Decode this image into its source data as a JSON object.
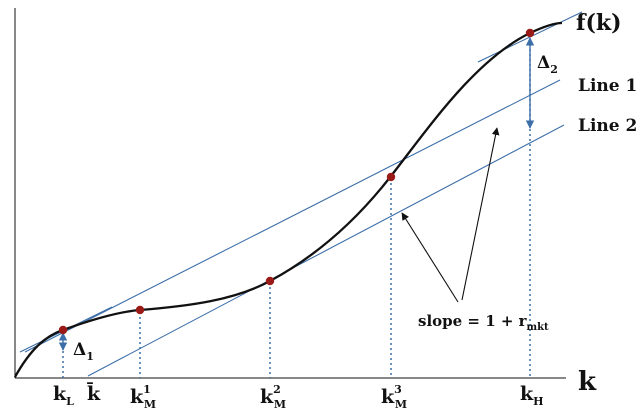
{
  "colors": {
    "curve": "#111111",
    "line": "#3c6ea8",
    "point": "#9a1a18",
    "axis": "#111111",
    "guide": "#3c6ea8"
  },
  "labels": {
    "f_of_k": "f(k)",
    "k_axis": "k",
    "line1": "Line 1",
    "line2": "Line 2",
    "delta1": "Δ",
    "delta1_sub": "1",
    "delta2": "Δ",
    "delta2_sub": "2",
    "slope": "slope = 1 + r",
    "slope_sub": "mkt"
  },
  "ticks": {
    "kL": {
      "main": "k",
      "sub": "L",
      "sup": ""
    },
    "kbar": {
      "main": "k̄",
      "sub": "",
      "sup": ""
    },
    "kM1": {
      "main": "k",
      "sub": "M",
      "sup": "1"
    },
    "kM2": {
      "main": "k",
      "sub": "M",
      "sup": "2"
    },
    "kM3": {
      "main": "k",
      "sub": "M",
      "sup": "3"
    },
    "kH": {
      "main": "k",
      "sub": "H",
      "sup": ""
    }
  }
}
